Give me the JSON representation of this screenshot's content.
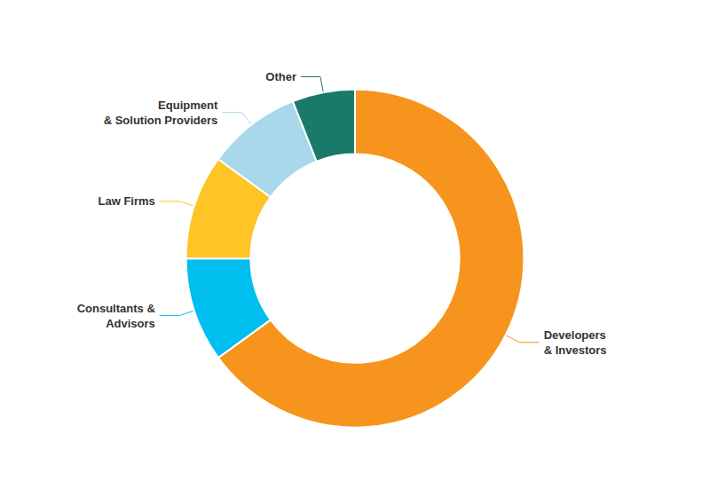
{
  "chart_data": {
    "type": "donut",
    "categories": [
      "Developers\n& Investors",
      "Consultants &\nAdvisors",
      "Law Firms",
      "Equipment\n& Solution Providers",
      "Other"
    ],
    "values": [
      65,
      10,
      10,
      9,
      6
    ],
    "colors": [
      "#F7941D",
      "#00BFEF",
      "#FFC425",
      "#A8D8EA",
      "#1A7A6A"
    ]
  }
}
